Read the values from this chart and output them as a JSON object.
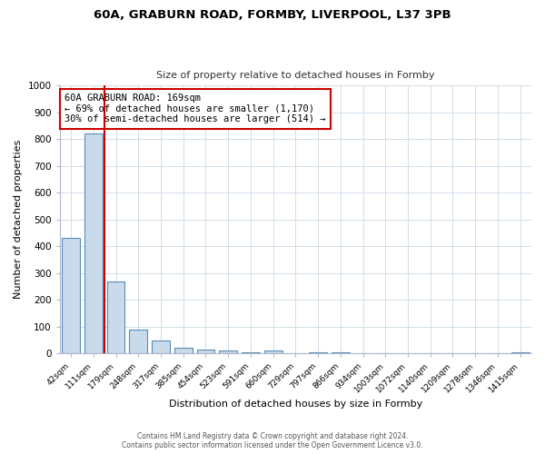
{
  "title": "60A, GRABURN ROAD, FORMBY, LIVERPOOL, L37 3PB",
  "subtitle": "Size of property relative to detached houses in Formby",
  "xlabel": "Distribution of detached houses by size in Formby",
  "ylabel": "Number of detached properties",
  "bar_labels": [
    "42sqm",
    "111sqm",
    "179sqm",
    "248sqm",
    "317sqm",
    "385sqm",
    "454sqm",
    "523sqm",
    "591sqm",
    "660sqm",
    "729sqm",
    "797sqm",
    "866sqm",
    "934sqm",
    "1003sqm",
    "1072sqm",
    "1140sqm",
    "1209sqm",
    "1278sqm",
    "1346sqm",
    "1415sqm"
  ],
  "bar_values": [
    430,
    820,
    270,
    90,
    48,
    22,
    15,
    10,
    5,
    10,
    0,
    5,
    5,
    0,
    0,
    0,
    0,
    0,
    0,
    0,
    5
  ],
  "bar_color": "#c9daea",
  "bar_edge_color": "#5b8db8",
  "property_line_x": 1.5,
  "property_line_color": "#cc0000",
  "annotation_text": "60A GRABURN ROAD: 169sqm\n← 69% of detached houses are smaller (1,170)\n30% of semi-detached houses are larger (514) →",
  "annotation_box_color": "#ffffff",
  "annotation_box_edge": "#cc0000",
  "ylim": [
    0,
    1000
  ],
  "yticks": [
    0,
    100,
    200,
    300,
    400,
    500,
    600,
    700,
    800,
    900,
    1000
  ],
  "footer_line1": "Contains HM Land Registry data © Crown copyright and database right 2024.",
  "footer_line2": "Contains public sector information licensed under the Open Government Licence v3.0.",
  "background_color": "#ffffff",
  "grid_color": "#d0dde8"
}
